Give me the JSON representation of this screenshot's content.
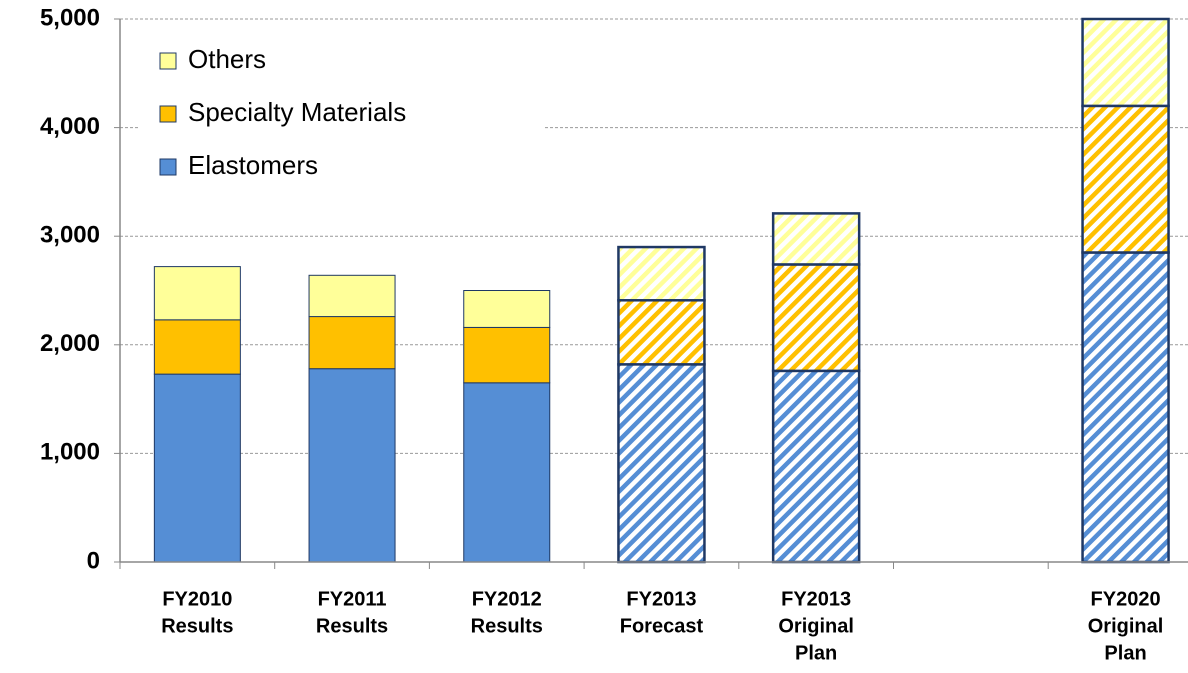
{
  "chart_data": {
    "type": "stacked_bar",
    "categories": [
      [
        "FY2010",
        "Results"
      ],
      [
        "FY2011",
        "Results"
      ],
      [
        "FY2012",
        "Results"
      ],
      [
        "FY2013",
        "Forecast"
      ],
      [
        "FY2013",
        "Original",
        "Plan"
      ],
      null,
      [
        "FY2020",
        "Original",
        "Plan"
      ]
    ],
    "hatched": [
      false,
      false,
      false,
      true,
      true,
      null,
      true
    ],
    "series": [
      {
        "name": "Elastomers",
        "color": "#558ed5",
        "values": [
          1730,
          1780,
          1650,
          1820,
          1760,
          null,
          2850
        ]
      },
      {
        "name": "Specialty Materials",
        "color": "#ffc000",
        "values": [
          500,
          480,
          510,
          590,
          980,
          null,
          1350
        ]
      },
      {
        "name": "Others",
        "color": "#ffff99",
        "values": [
          490,
          380,
          340,
          490,
          470,
          null,
          800
        ]
      }
    ],
    "ylim": [
      0,
      5000
    ],
    "yticks": [
      0,
      {
        "value": 1000,
        "label": "1,000"
      },
      {
        "value": 2000,
        "label": "2,000"
      },
      {
        "value": 3000,
        "label": "3,000"
      },
      {
        "value": 4000,
        "label": "4,000"
      },
      {
        "value": 5000,
        "label": "5,000"
      }
    ],
    "grid": true,
    "legend": "top-left"
  }
}
